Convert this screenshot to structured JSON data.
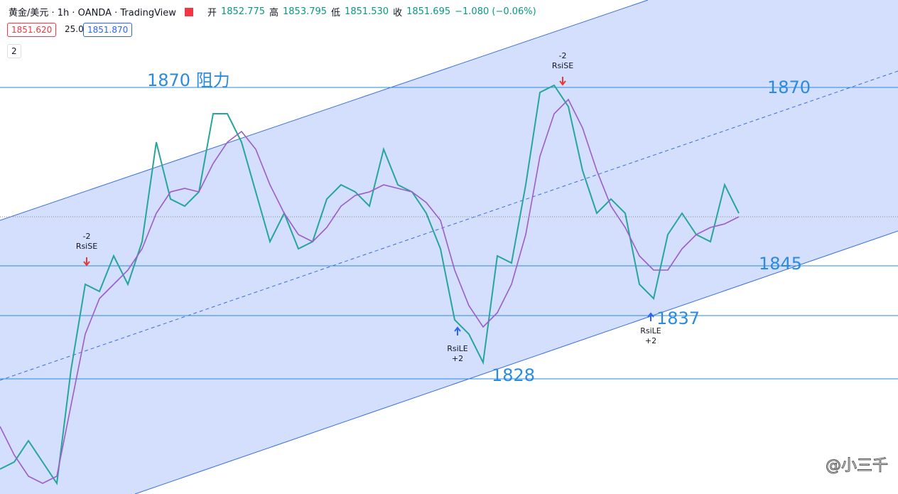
{
  "header": {
    "symbol": "黄金/美元 · 1h · OANDA · TradingView",
    "open_label": "开",
    "open": "1852.775",
    "high_label": "高",
    "high": "1853.795",
    "low_label": "低",
    "low": "1851.530",
    "close_label": "收",
    "close": "1851.695",
    "change": "−1.080 (−0.06%)"
  },
  "toolbar": {
    "bid": "1851.620",
    "spread": "25.0",
    "ask": "1851.870",
    "collapse": "2"
  },
  "chart_data": {
    "type": "line",
    "ylim": [
      1812.8,
      1882.3
    ],
    "series": [
      {
        "color": "#26a69a",
        "values": [
          1816.3,
          1817.3,
          1820.3,
          1817.3,
          1814.3,
          1830.3,
          1842.3,
          1841.3,
          1846.3,
          1842.3,
          1848.3,
          1862.3,
          1854.3,
          1853.3,
          1855.3,
          1866.3,
          1866.3,
          1862.3,
          1855.3,
          1848.3,
          1852.3,
          1847.3,
          1848.3,
          1854.3,
          1856.3,
          1855.3,
          1853.3,
          1861.3,
          1856.3,
          1855.3,
          1852.3,
          1847.3,
          1837.3,
          1835.3,
          1831.3,
          1846.3,
          1845.3,
          1856.3,
          1869.3,
          1870.3,
          1867.3,
          1858.3,
          1852.3,
          1854.3,
          1852.3,
          1842.3,
          1840.3,
          1849.3,
          1852.3,
          1849.3,
          1848.3,
          1856.3,
          1852.3
        ]
      },
      {
        "color": "#9c5cc9",
        "values": [
          1822.3,
          1818.3,
          1815.3,
          1814.3,
          1815.3,
          1825.3,
          1835.3,
          1840.3,
          1842.3,
          1844.3,
          1847.3,
          1852.3,
          1855.3,
          1855.8,
          1855.3,
          1859.3,
          1862.3,
          1863.8,
          1861.3,
          1856.3,
          1852.3,
          1849.3,
          1848.3,
          1850.3,
          1853.3,
          1854.8,
          1855.3,
          1856.3,
          1855.8,
          1855.3,
          1853.8,
          1851.3,
          1844.3,
          1839.3,
          1836.3,
          1838.3,
          1842.3,
          1849.3,
          1860.3,
          1866.3,
          1868.3,
          1864.3,
          1858.3,
          1853.3,
          1850.3,
          1846.3,
          1844.3,
          1844.3,
          1847.3,
          1849.3,
          1850.3,
          1850.8,
          1851.8
        ]
      }
    ],
    "annotations": [
      "1870 阻力",
      "1870",
      "1845",
      "1837",
      "1828"
    ],
    "signals": [
      "-2",
      "RsiSE",
      "-2",
      "RsiSE",
      "RsiLE",
      "+2",
      "RsiLE",
      "+2"
    ]
  },
  "watermark": "@小三千"
}
